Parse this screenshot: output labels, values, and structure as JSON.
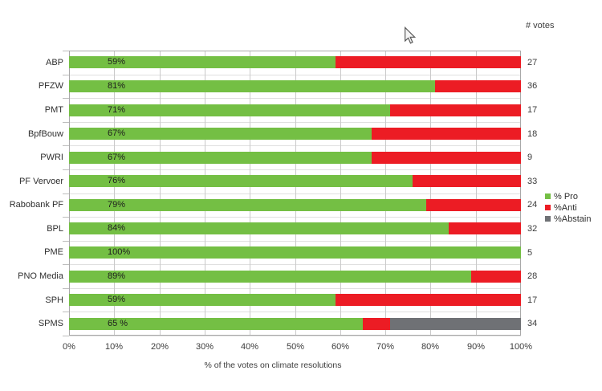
{
  "votes_column": {
    "header": "# votes"
  },
  "icons": {
    "cursor": "arrow-pointer"
  },
  "chart_data": {
    "type": "bar",
    "orientation": "horizontal",
    "stacked": true,
    "title": "",
    "xlabel": "% of the votes on climate resolutions",
    "ylabel": "",
    "xlim": [
      0,
      100
    ],
    "grid": "vertical-major-and-category-lines",
    "legend_position": "right",
    "categories": [
      "ABP",
      "PFZW",
      "PMT",
      "BpfBouw",
      "PWRI",
      "PF Vervoer",
      "Rabobank PF",
      "BPL",
      "PME",
      "PNO Media",
      "SPH",
      "SPMS"
    ],
    "series": [
      {
        "name": "% Pro",
        "color": "#74bf44",
        "values": [
          59,
          81,
          71,
          67,
          67,
          76,
          79,
          84,
          100,
          89,
          59,
          65
        ]
      },
      {
        "name": "%Anti",
        "color": "#ec1c24",
        "values": [
          41,
          19,
          29,
          33,
          33,
          24,
          21,
          16,
          0,
          11,
          41,
          6
        ]
      },
      {
        "name": "%Abstain",
        "color": "#6f7175",
        "values": [
          0,
          0,
          0,
          0,
          0,
          0,
          0,
          0,
          0,
          0,
          0,
          29
        ]
      }
    ],
    "bar_labels": [
      "59%",
      "81%",
      "71%",
      "67%",
      "67%",
      "76%",
      "79%",
      "84%",
      "100%",
      "89%",
      "59%",
      "65 %"
    ],
    "votes": [
      27,
      36,
      17,
      18,
      9,
      33,
      24,
      32,
      5,
      28,
      17,
      34
    ],
    "x_ticks": [
      "0%",
      "10%",
      "20%",
      "30%",
      "40%",
      "50%",
      "60%",
      "70%",
      "80%",
      "90%",
      "100%"
    ]
  }
}
